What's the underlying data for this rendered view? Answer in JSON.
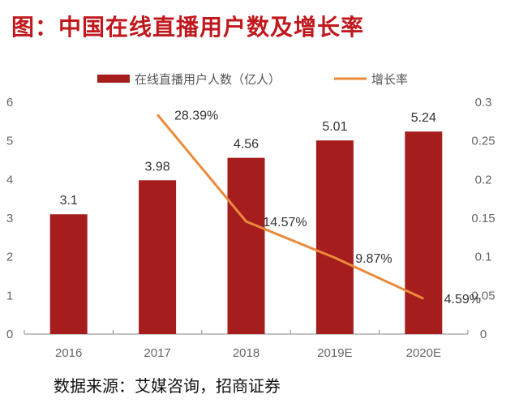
{
  "title": "图：中国在线直播用户数及增长率",
  "source": "数据来源：艾媒咨询，招商证券",
  "colors": {
    "bar": "#a51d1d",
    "line": "#eb8a3a",
    "title": "#c0181d"
  },
  "chart_data": {
    "type": "bar+line",
    "title": "图：中国在线直播用户数及增长率",
    "categories": [
      "2016",
      "2017",
      "2018",
      "2019E",
      "2020E"
    ],
    "series": [
      {
        "name": "在线直播用户人数（亿人）",
        "type": "bar",
        "axis": "left",
        "values": [
          3.1,
          3.98,
          4.56,
          5.01,
          5.24
        ],
        "labels": [
          "3.1",
          "3.98",
          "4.56",
          "5.01",
          "5.24"
        ]
      },
      {
        "name": "增长率",
        "type": "line",
        "axis": "right",
        "values": [
          null,
          0.2839,
          0.1457,
          0.0987,
          0.0459
        ],
        "labels": [
          "",
          "28.39%",
          "14.57%",
          "9.87%",
          "4.59%"
        ]
      }
    ],
    "y_left": {
      "range": [
        0,
        6
      ],
      "ticks": [
        "0",
        "1",
        "2",
        "3",
        "4",
        "5",
        "6"
      ]
    },
    "y_right": {
      "range": [
        0,
        0.3
      ],
      "ticks": [
        "0",
        "0.05",
        "0.1",
        "0.15",
        "0.2",
        "0.25",
        "0.3"
      ]
    },
    "legend": "top",
    "grid": false
  }
}
